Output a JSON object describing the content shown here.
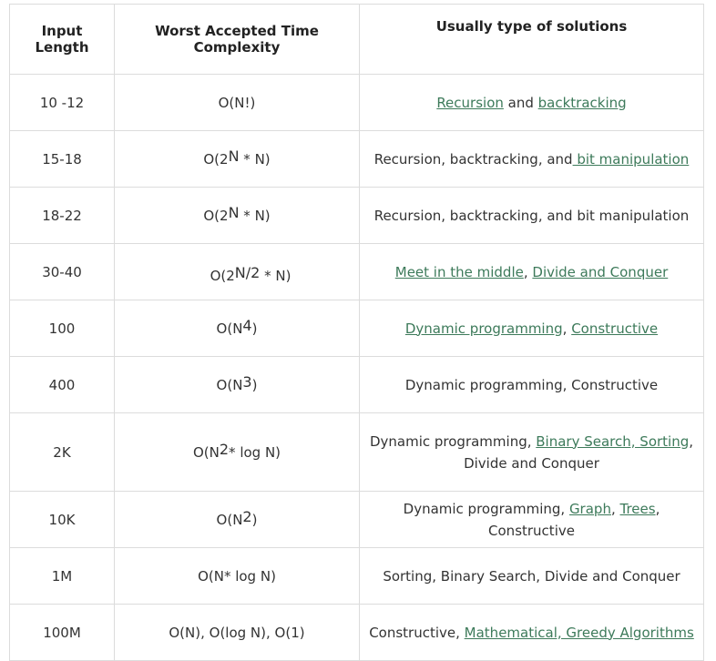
{
  "headers": [
    "Input Length",
    "Worst Accepted Time Complexity",
    "Usually type of solutions"
  ],
  "rows": [
    {
      "length": "10 -12",
      "c_pre": "O(N!)",
      "c_sup": "",
      "c_post": "",
      "sol": [
        {
          "t": "Recursion",
          "link": true
        },
        {
          "t": " and ",
          "link": false
        },
        {
          "t": "backtracking",
          "link": true
        }
      ]
    },
    {
      "length": "15-18",
      "c_pre": "O(2",
      "c_sup": "N",
      "c_post": " * N)",
      "sol": [
        {
          "t": "Recursion, backtracking, and",
          "link": false
        },
        {
          "t": " bit manipulation",
          "link": true
        }
      ]
    },
    {
      "length": "18-22",
      "c_pre": "O(2",
      "c_sup": "N",
      "c_post": " * N)",
      "sol": [
        {
          "t": "Recursion, backtracking, and bit manipulation",
          "link": false
        }
      ]
    },
    {
      "length": "30-40",
      "c_pre": "O(2",
      "c_sup": "N/2",
      "c_post": " * N)",
      "sol": [
        {
          "t": "Meet in the middle",
          "link": true
        },
        {
          "t": ", ",
          "link": false
        },
        {
          "t": "Divide and Conquer",
          "link": true
        }
      ]
    },
    {
      "length": "100",
      "c_pre": "O(N",
      "c_sup": "4",
      "c_post": ")",
      "sol": [
        {
          "t": "Dynamic programming",
          "link": true
        },
        {
          "t": ", ",
          "link": false
        },
        {
          "t": "Constructive",
          "link": true
        }
      ]
    },
    {
      "length": "400",
      "c_pre": "O(N",
      "c_sup": "3",
      "c_post": ")",
      "sol": [
        {
          "t": "Dynamic programming, Constructive",
          "link": false
        }
      ]
    },
    {
      "length": "2K",
      "c_pre": "O(N",
      "c_sup": "2",
      "c_post": "* log N)",
      "sol": [
        {
          "t": "Dynamic programming, ",
          "link": false
        },
        {
          "t": "Binary Search, Sorting",
          "link": true
        },
        {
          "t": ", Divide and Conquer",
          "link": false
        }
      ]
    },
    {
      "length": "10K",
      "c_pre": "O(N",
      "c_sup": "2",
      "c_post": ")",
      "sol": [
        {
          "t": "Dynamic programming, ",
          "link": false
        },
        {
          "t": "Graph",
          "link": true
        },
        {
          "t": ", ",
          "link": false
        },
        {
          "t": "Trees",
          "link": true
        },
        {
          "t": ", Constructive",
          "link": false
        }
      ]
    },
    {
      "length": "1M",
      "c_pre": "O(N* log N)",
      "c_sup": "",
      "c_post": "",
      "sol": [
        {
          "t": "Sorting, Binary Search, Divide and Conquer",
          "link": false
        }
      ]
    },
    {
      "length": "100M",
      "c_pre": "O(N), O(log N), O(1)",
      "c_sup": "",
      "c_post": "",
      "sol": [
        {
          "t": "Constructive, ",
          "link": false
        },
        {
          "t": "Mathematical, Greedy Algorithms",
          "link": true
        }
      ]
    }
  ]
}
